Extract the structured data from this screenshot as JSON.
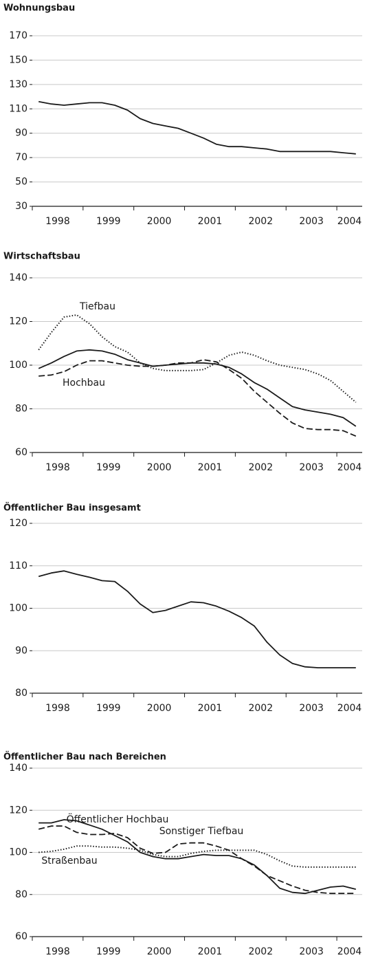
{
  "chart_data": [
    {
      "type": "line",
      "title": "Wohnungsbau",
      "categories": [
        "1998",
        null,
        null,
        null,
        "1999",
        null,
        null,
        null,
        "2000",
        null,
        null,
        null,
        "2001",
        null,
        null,
        null,
        "2002",
        null,
        null,
        null,
        "2003",
        null,
        null,
        null,
        "2004",
        null
      ],
      "ylim": [
        30,
        170
      ],
      "yticks": [
        30,
        50,
        70,
        90,
        110,
        130,
        150,
        170
      ],
      "grid": true,
      "series": [
        {
          "color": "#1a1a1a",
          "style": "solid",
          "values": [
            116,
            114,
            113,
            114,
            115,
            115,
            113,
            109,
            102,
            98,
            96,
            94,
            90,
            86,
            81,
            79,
            79,
            78,
            77,
            75,
            75,
            75,
            75,
            75,
            74,
            73
          ]
        }
      ]
    },
    {
      "type": "line",
      "title": "Wirtschaftsbau",
      "categories": [
        "1998",
        null,
        null,
        null,
        "1999",
        null,
        null,
        null,
        "2000",
        null,
        null,
        null,
        "2001",
        null,
        null,
        null,
        "2002",
        null,
        null,
        null,
        "2003",
        null,
        null,
        null,
        "2004",
        null
      ],
      "ylim": [
        60,
        140
      ],
      "yticks": [
        60,
        80,
        100,
        120,
        140
      ],
      "grid": true,
      "series": [
        {
          "color": "#1a1a1a",
          "style": "solid",
          "values": [
            98.5,
            101,
            104,
            106.5,
            107,
            106.5,
            105,
            102.5,
            101,
            99.5,
            100,
            100.5,
            101,
            101,
            100.5,
            99,
            96,
            92,
            89,
            85,
            81,
            79.5,
            78.5,
            77.5,
            76,
            72
          ]
        },
        {
          "name": "Hochbau",
          "color": "#1a1a1a",
          "style": "dashed",
          "values": [
            95,
            95.5,
            97,
            100,
            102,
            102,
            101,
            100,
            99.5,
            99.5,
            100,
            101,
            101,
            102.5,
            101.5,
            98,
            94,
            88,
            83,
            78,
            73.5,
            71,
            70.5,
            70.5,
            70,
            67.5
          ]
        },
        {
          "name": "Tiefbau",
          "color": "#1a1a1a",
          "style": "dotted",
          "values": [
            107,
            115,
            122,
            123,
            119,
            113,
            108.5,
            106,
            101,
            98.5,
            97.5,
            97.5,
            97.5,
            98,
            101,
            104.5,
            106,
            104.5,
            102,
            100,
            99,
            98,
            96,
            93,
            88,
            83
          ]
        }
      ]
    },
    {
      "type": "line",
      "title": "Öffentlicher Bau insgesamt",
      "categories": [
        "1998",
        null,
        null,
        null,
        "1999",
        null,
        null,
        null,
        "2000",
        null,
        null,
        null,
        "2001",
        null,
        null,
        null,
        "2002",
        null,
        null,
        null,
        "2003",
        null,
        null,
        null,
        "2004",
        null
      ],
      "ylim": [
        80,
        120
      ],
      "yticks": [
        80,
        90,
        100,
        110,
        120
      ],
      "grid": true,
      "series": [
        {
          "color": "#1a1a1a",
          "style": "solid",
          "values": [
            107.5,
            108.3,
            108.8,
            108,
            107.3,
            106.5,
            106.3,
            104,
            101,
            99,
            99.5,
            100.5,
            101.5,
            101.3,
            100.5,
            99.3,
            97.8,
            95.8,
            92,
            89,
            87,
            86.2,
            86,
            86,
            86,
            86
          ]
        }
      ]
    },
    {
      "type": "line",
      "title": "Öffentlicher Bau nach Bereichen",
      "categories": [
        "1998",
        null,
        null,
        null,
        "1999",
        null,
        null,
        null,
        "2000",
        null,
        null,
        null,
        "2001",
        null,
        null,
        null,
        "2002",
        null,
        null,
        null,
        "2003",
        null,
        null,
        null,
        "2004",
        null
      ],
      "ylim": [
        60,
        140
      ],
      "yticks": [
        60,
        80,
        100,
        120,
        140
      ],
      "grid": true,
      "series": [
        {
          "name": "Öffentlicher Hochbau",
          "color": "#1a1a1a",
          "style": "solid",
          "values": [
            114,
            114,
            115.5,
            115,
            113,
            111,
            108,
            105,
            100,
            98,
            97,
            97,
            98,
            99,
            98.5,
            98.5,
            97,
            94,
            89,
            83,
            81,
            80.5,
            82,
            83.5,
            84,
            82.5
          ]
        },
        {
          "name": "Sonstiger Tiefbau",
          "color": "#1a1a1a",
          "style": "dashed",
          "values": [
            111,
            112.5,
            112.5,
            109.5,
            108.5,
            108.5,
            109,
            107,
            102,
            99.5,
            100,
            104,
            104.5,
            104.5,
            103,
            101,
            97,
            93.5,
            89,
            86.5,
            84,
            82,
            81,
            80.5,
            80.5,
            80.5
          ]
        },
        {
          "name": "Straßenbau",
          "color": "#1a1a1a",
          "style": "dotted",
          "values": [
            100,
            100.5,
            101.5,
            103,
            103,
            102.5,
            102.5,
            102,
            101,
            99,
            98,
            98,
            99.5,
            100.5,
            101,
            101,
            101,
            101,
            99,
            96,
            93.5,
            93,
            93,
            93,
            93,
            93
          ]
        }
      ]
    }
  ]
}
